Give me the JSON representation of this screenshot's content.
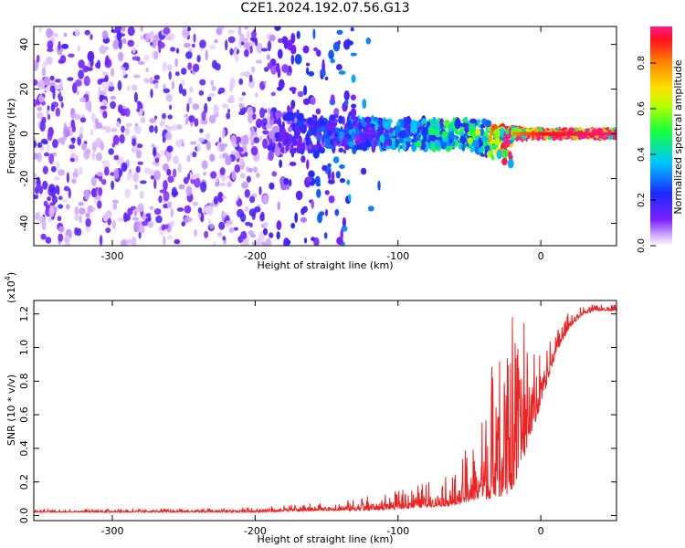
{
  "title": "C2E1.2024.192.07.56.G13",
  "chart_data": [
    {
      "type": "heatmap",
      "xlabel": "Height of straight line (km)",
      "ylabel": "Frequency (Hz)",
      "xlim": [
        -355,
        53
      ],
      "ylim": [
        -50,
        48
      ],
      "x_ticks": [
        -300,
        -200,
        -100,
        0
      ],
      "y_ticks": [
        -40,
        -20,
        0,
        20,
        40
      ],
      "colorbar": {
        "label": "Normalized spectral amplitude",
        "range": [
          0,
          0.96
        ],
        "ticks": [
          "0.0",
          "0.2",
          "0.4",
          "0.6",
          "0.8"
        ],
        "colormap": "rainbow (violet-blue-cyan-green-yellow-red)"
      },
      "description_points": [
        {
          "x": -350,
          "freq_spread": 48,
          "amplitude": 0.1
        },
        {
          "x": -250,
          "freq_spread": 48,
          "amplitude": 0.08
        },
        {
          "x": -180,
          "freq_spread": 8,
          "amplitude": 0.15
        },
        {
          "x": -100,
          "freq_spread": 6,
          "amplitude": 0.3
        },
        {
          "x": -40,
          "freq_spread": 6,
          "amplitude": 0.45
        },
        {
          "x": -20,
          "freq_spread": 2,
          "amplitude": 0.8
        },
        {
          "x": 0,
          "freq_spread": 1,
          "amplitude": 0.9
        },
        {
          "x": 50,
          "freq_spread": 1,
          "amplitude": 0.95
        }
      ]
    },
    {
      "type": "line",
      "xlabel": "Height of straight line (km)",
      "ylabel": "SNR (10 * v/v)",
      "y_scale_label": "(x10",
      "y_scale_exp": "4",
      "xlim": [
        -355,
        53
      ],
      "ylim": [
        -0.03,
        1.28
      ],
      "x_ticks": [
        -300,
        -200,
        -100,
        0
      ],
      "y_ticks": [
        "0.0",
        "0.2",
        "0.4",
        "0.6",
        "0.8",
        "1.0",
        "1.2"
      ],
      "line_color": "#ee2222",
      "envelope": {
        "x": [
          -355,
          -300,
          -250,
          -200,
          -150,
          -120,
          -100,
          -80,
          -60,
          -50,
          -40,
          -30,
          -25,
          -20,
          -15,
          -10,
          0,
          10,
          20,
          30,
          40,
          53
        ],
        "base": [
          0.02,
          0.02,
          0.02,
          0.02,
          0.03,
          0.03,
          0.04,
          0.05,
          0.06,
          0.08,
          0.1,
          0.1,
          0.1,
          0.15,
          0.25,
          0.4,
          0.65,
          0.95,
          1.12,
          1.2,
          1.22,
          1.22
        ],
        "peak": [
          0.04,
          0.04,
          0.04,
          0.05,
          0.08,
          0.12,
          0.15,
          0.2,
          0.25,
          0.45,
          0.6,
          0.85,
          1.1,
          1.22,
          1.15,
          1.05,
          1.0,
          1.1,
          1.22,
          1.25,
          1.26,
          1.26
        ]
      }
    }
  ]
}
